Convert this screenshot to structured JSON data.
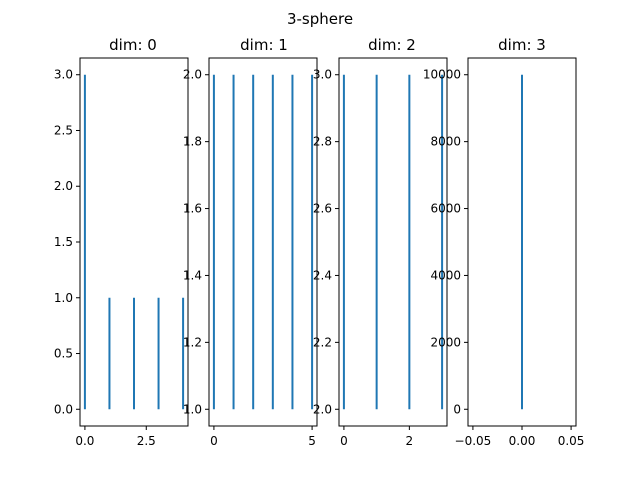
{
  "figure": {
    "title": "3-sphere"
  },
  "chart_data": [
    {
      "type": "bar",
      "title": "dim: 0",
      "xlabel": "",
      "ylabel": "",
      "xlim": [
        -0.2,
        4.2
      ],
      "ylim": [
        -0.15,
        3.15
      ],
      "xticks": [
        0,
        2.5
      ],
      "xtick_labels": [
        "0.0",
        "2.5"
      ],
      "yticks": [
        0.0,
        0.5,
        1.0,
        1.5,
        2.0,
        2.5,
        3.0
      ],
      "ytick_labels": [
        "0.0",
        "0.5",
        "1.0",
        "1.5",
        "2.0",
        "2.5",
        "3.0"
      ],
      "bars": [
        {
          "x": 0,
          "bottom": 0,
          "top": 3
        },
        {
          "x": 1,
          "bottom": 0,
          "top": 1
        },
        {
          "x": 2,
          "bottom": 0,
          "top": 1
        },
        {
          "x": 3,
          "bottom": 0,
          "top": 1
        },
        {
          "x": 4,
          "bottom": 0,
          "top": 1
        }
      ]
    },
    {
      "type": "bar",
      "title": "dim: 1",
      "xlabel": "",
      "ylabel": "",
      "xlim": [
        -0.25,
        5.25
      ],
      "ylim": [
        0.95,
        2.05
      ],
      "xticks": [
        0,
        5
      ],
      "xtick_labels": [
        "0",
        "5"
      ],
      "yticks": [
        1.0,
        1.2,
        1.4,
        1.6,
        1.8,
        2.0
      ],
      "ytick_labels": [
        "1.0",
        "1.2",
        "1.4",
        "1.6",
        "1.8",
        "2.0"
      ],
      "bars": [
        {
          "x": 0,
          "bottom": 1,
          "top": 2
        },
        {
          "x": 1,
          "bottom": 1,
          "top": 2
        },
        {
          "x": 2,
          "bottom": 1,
          "top": 2
        },
        {
          "x": 3,
          "bottom": 1,
          "top": 2
        },
        {
          "x": 4,
          "bottom": 1,
          "top": 2
        },
        {
          "x": 5,
          "bottom": 1,
          "top": 2
        }
      ]
    },
    {
      "type": "bar",
      "title": "dim: 2",
      "xlabel": "",
      "ylabel": "",
      "xlim": [
        -0.15,
        3.15
      ],
      "ylim": [
        1.95,
        3.05
      ],
      "xticks": [
        0,
        2
      ],
      "xtick_labels": [
        "0",
        "2"
      ],
      "yticks": [
        2.0,
        2.2,
        2.4,
        2.6,
        2.8,
        3.0
      ],
      "ytick_labels": [
        "2.0",
        "2.2",
        "2.4",
        "2.6",
        "2.8",
        "3.0"
      ],
      "bars": [
        {
          "x": 0,
          "bottom": 2,
          "top": 3
        },
        {
          "x": 1,
          "bottom": 2,
          "top": 3
        },
        {
          "x": 2,
          "bottom": 2,
          "top": 3
        },
        {
          "x": 3,
          "bottom": 2,
          "top": 3
        }
      ]
    },
    {
      "type": "bar",
      "title": "dim: 3",
      "xlabel": "",
      "ylabel": "",
      "xlim": [
        -0.055,
        0.055
      ],
      "ylim": [
        -500,
        10500
      ],
      "xticks": [
        -0.05,
        0.0,
        0.05
      ],
      "xtick_labels": [
        "−0.05",
        "0.00",
        "0.05"
      ],
      "yticks": [
        0,
        2000,
        4000,
        6000,
        8000,
        10000
      ],
      "ytick_labels": [
        "0",
        "2000",
        "4000",
        "6000",
        "8000",
        "10000"
      ],
      "bars": [
        {
          "x": 0,
          "bottom": 0,
          "top": 10000
        }
      ]
    }
  ]
}
